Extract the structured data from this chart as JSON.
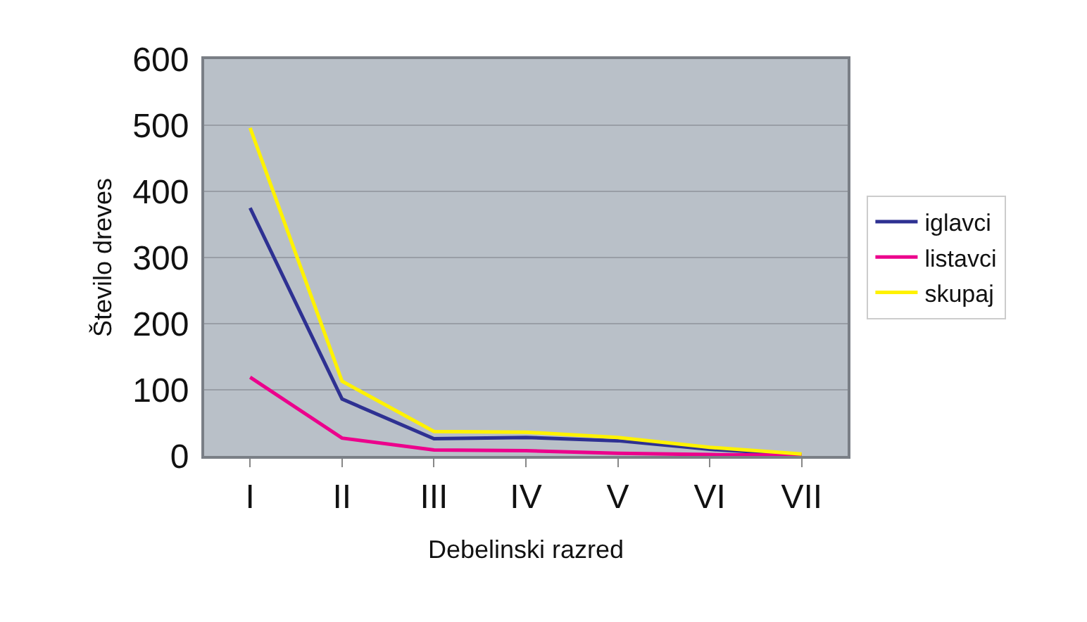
{
  "chart_data": {
    "type": "line",
    "xlabel": "Debelinski razred",
    "ylabel": "Število dreves",
    "categories": [
      "I",
      "II",
      "III",
      "IV",
      "V",
      "VI",
      "VII"
    ],
    "series": [
      {
        "name": "iglavci",
        "color": "#2e3192",
        "values": [
          375,
          86,
          26,
          28,
          23,
          10,
          2
        ]
      },
      {
        "name": "listavci",
        "color": "#ec008c",
        "values": [
          119,
          27,
          9,
          8,
          4,
          2,
          1
        ]
      },
      {
        "name": "skupaj",
        "color": "#fff200",
        "values": [
          496,
          113,
          37,
          36,
          28,
          13,
          3
        ]
      }
    ],
    "ylim": [
      0,
      600
    ],
    "yticks": [
      0,
      100,
      200,
      300,
      400,
      500,
      600
    ],
    "grid": "y",
    "legend": "right",
    "marker": "none",
    "line_style": "solid"
  }
}
